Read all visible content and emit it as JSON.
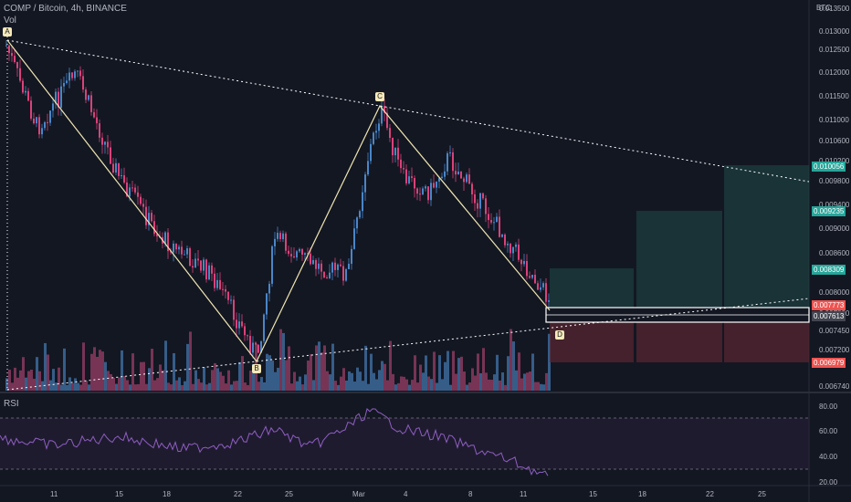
{
  "header": {
    "symbol": "COMP / Bitcoin, 4h, BINANCE",
    "vol_label": "Vol",
    "currency": "BTC",
    "rsi_label": "RSI"
  },
  "price_axis": {
    "labels": [
      "0.013500",
      "0.013000",
      "0.012500",
      "0.012000",
      "0.011500",
      "0.011000",
      "0.010600",
      "0.010200",
      "0.009800",
      "0.009400",
      "0.009000",
      "0.008600",
      "0.008000",
      "0.007800",
      "0.007450",
      "0.007200",
      "0.006740"
    ]
  },
  "price_tags": [
    {
      "value": "0.010056",
      "color": "#26a69a"
    },
    {
      "value": "0.009235",
      "color": "#26a69a"
    },
    {
      "value": "0.008309",
      "color": "#26a69a"
    },
    {
      "value": "0.007773",
      "color": "#ef5350"
    },
    {
      "value": "0.007613",
      "color": "#434651"
    },
    {
      "value": "0.006979",
      "color": "#ef5350"
    }
  ],
  "rsi_axis": {
    "labels": [
      "80.00",
      "60.00",
      "40.00",
      "20.00"
    ]
  },
  "time_axis": {
    "labels": [
      "11",
      "15",
      "18",
      "22",
      "25",
      "Mar",
      "4",
      "8",
      "11",
      "15",
      "18",
      "22",
      "25"
    ]
  },
  "pattern_points": {
    "A": "A",
    "B": "B",
    "C": "C",
    "D": "D"
  },
  "colors": {
    "background": "#131722",
    "up": "#4a86c7",
    "down": "#d9427a",
    "target_green": "#26a69a",
    "stop_red": "#ef5350",
    "rsi": "#8e5ec2"
  }
}
